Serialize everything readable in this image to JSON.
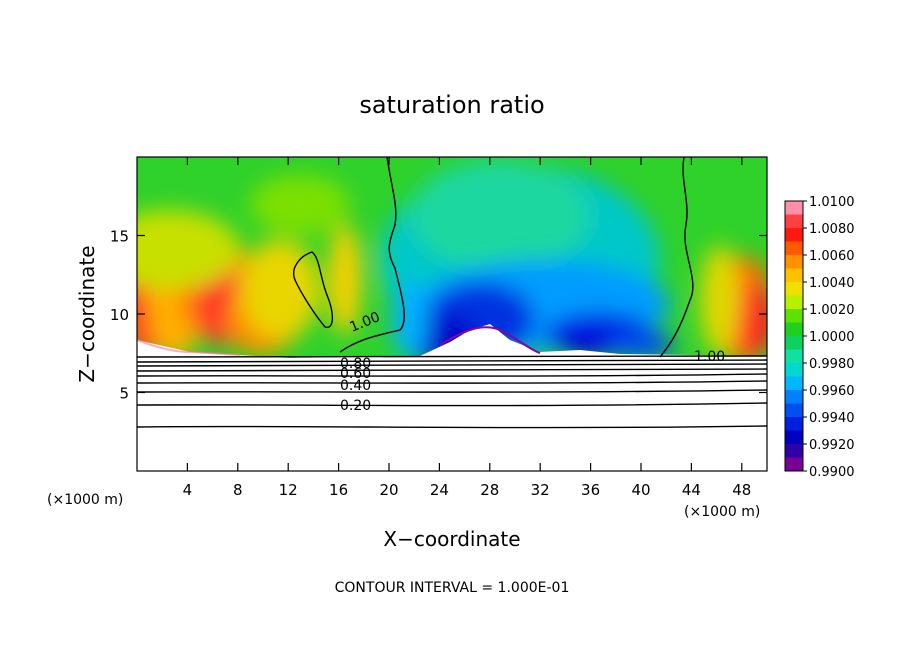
{
  "chart_data": {
    "type": "heatmap",
    "title": "saturation ratio",
    "xlabel": "X−coordinate",
    "ylabel": "Z−coordinate",
    "x_unit_left": "(×1000 m)",
    "x_unit_right": "(×1000 m)",
    "xlim": [
      0,
      50
    ],
    "ylim": [
      0,
      20
    ],
    "x_ticks": [
      4,
      8,
      12,
      16,
      20,
      24,
      28,
      32,
      36,
      40,
      44,
      48
    ],
    "y_ticks": [
      5,
      10,
      15
    ],
    "colorbar": {
      "vmin": 0.99,
      "vmax": 1.01,
      "tick_labels": [
        "1.0100",
        "1.0080",
        "1.0060",
        "1.0040",
        "1.0020",
        "1.0000",
        "0.9980",
        "0.9960",
        "0.9940",
        "0.9920",
        "0.9900"
      ],
      "tick_values": [
        1.01,
        1.008,
        1.006,
        1.004,
        1.002,
        1.0,
        0.998,
        0.996,
        0.994,
        0.992,
        0.99
      ]
    },
    "contour_labels": [
      {
        "text": "1.00",
        "x": 18.2,
        "z": 10.0
      },
      {
        "text": "1.00",
        "x": 44.5,
        "z": 7.4
      },
      {
        "text": "0.80",
        "x": 17.8,
        "z": 6.9
      },
      {
        "text": "0.60",
        "x": 17.8,
        "z": 6.5
      },
      {
        "text": "0.40",
        "x": 17.6,
        "z": 5.6
      },
      {
        "text": "0.20",
        "x": 17.6,
        "z": 4.2
      }
    ],
    "footer": "CONTOUR INTERVAL = 1.000E-01"
  }
}
